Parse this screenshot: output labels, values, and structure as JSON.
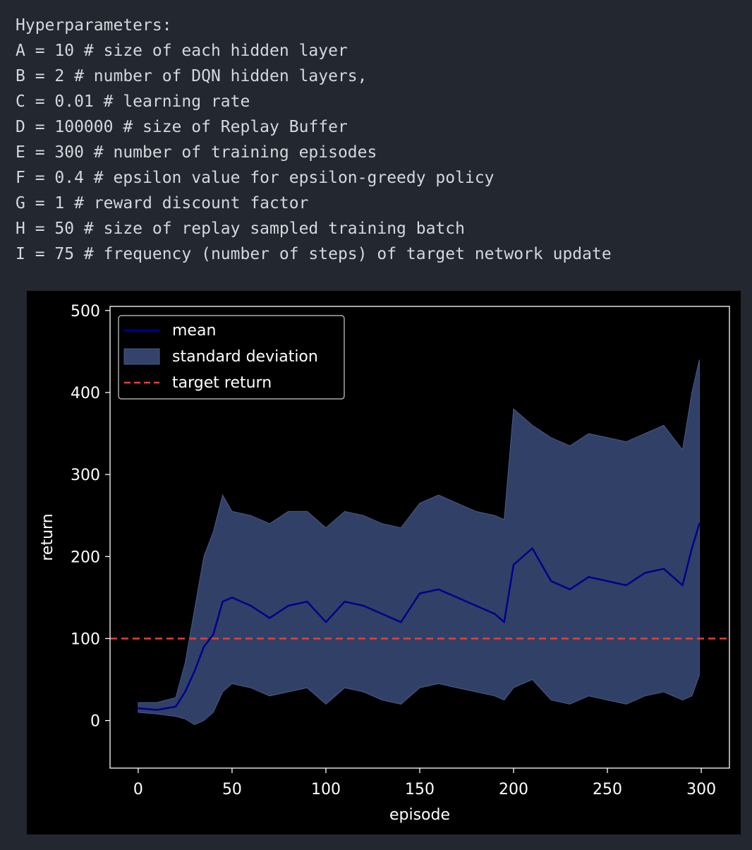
{
  "code_block": {
    "lines": [
      "Hyperparameters:",
      "A = 10 # size of each hidden layer",
      "B = 2 # number of DQN hidden layers,",
      "C = 0.01 # learning rate",
      "D = 100000 # size of Replay Buffer",
      "E = 300 # number of training episodes",
      "F = 0.4 # epsilon value for epsilon-greedy policy",
      "G = 1 # reward discount factor",
      "H = 50 # size of replay sampled training batch",
      "I = 75 # frequency (number of steps) of target network update"
    ]
  },
  "chart_data": {
    "type": "line",
    "title": "",
    "xlabel": "episode",
    "ylabel": "return",
    "xlim": [
      -15,
      315
    ],
    "ylim": [
      -58,
      505
    ],
    "xticks": [
      0,
      50,
      100,
      150,
      200,
      250,
      300
    ],
    "yticks": [
      0,
      100,
      200,
      300,
      400,
      500
    ],
    "grid": false,
    "legend_position": "upper-left",
    "background": "#000000",
    "target_return": 100,
    "series": [
      {
        "name": "mean",
        "color": "#00008b",
        "x": [
          0,
          10,
          20,
          25,
          30,
          35,
          40,
          45,
          50,
          60,
          70,
          80,
          90,
          100,
          110,
          120,
          130,
          140,
          150,
          160,
          170,
          180,
          190,
          195,
          200,
          210,
          220,
          230,
          240,
          250,
          260,
          270,
          280,
          290,
          295,
          299
        ],
        "y": [
          15,
          13,
          17,
          35,
          60,
          90,
          105,
          145,
          150,
          140,
          125,
          140,
          145,
          120,
          145,
          140,
          130,
          120,
          155,
          160,
          150,
          140,
          130,
          120,
          190,
          210,
          170,
          160,
          175,
          170,
          165,
          180,
          185,
          165,
          210,
          240
        ]
      },
      {
        "name": "standard deviation",
        "color": "#34436b",
        "x": [
          0,
          10,
          20,
          25,
          30,
          35,
          40,
          45,
          50,
          60,
          70,
          80,
          90,
          100,
          110,
          120,
          130,
          140,
          150,
          160,
          170,
          180,
          190,
          195,
          200,
          210,
          220,
          230,
          240,
          250,
          260,
          270,
          280,
          290,
          295,
          299
        ],
        "upper": [
          22,
          22,
          28,
          70,
          135,
          200,
          230,
          275,
          255,
          250,
          240,
          255,
          255,
          235,
          255,
          250,
          240,
          235,
          265,
          275,
          265,
          255,
          250,
          245,
          380,
          360,
          345,
          335,
          350,
          345,
          340,
          350,
          360,
          330,
          400,
          440
        ],
        "lower": [
          10,
          8,
          5,
          2,
          -5,
          0,
          10,
          35,
          45,
          40,
          30,
          35,
          40,
          20,
          40,
          35,
          25,
          20,
          40,
          45,
          40,
          35,
          30,
          25,
          40,
          50,
          25,
          20,
          30,
          25,
          20,
          30,
          35,
          25,
          30,
          55
        ]
      },
      {
        "name": "target return",
        "color": "#e0413d",
        "style": "dashed",
        "y": 100
      }
    ]
  }
}
